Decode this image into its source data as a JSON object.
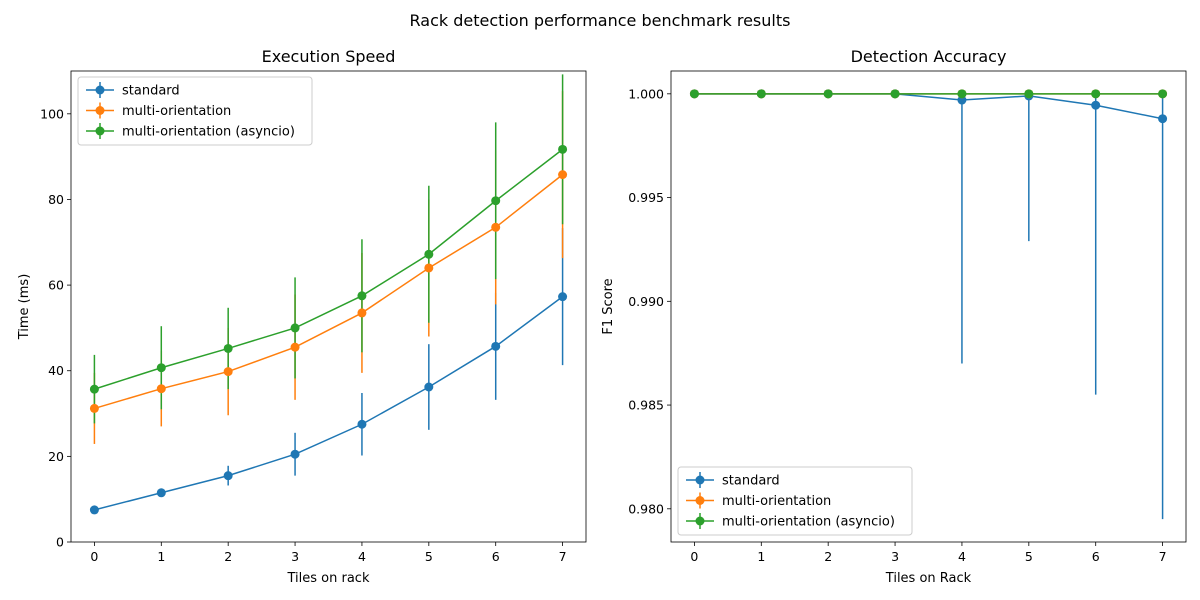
{
  "suptitle": "Rack detection performance benchmark results",
  "colors": {
    "standard": "#1f77b4",
    "multi-orientation": "#ff7f0e",
    "multi-orientation (asyncio)": "#2ca02c"
  },
  "chart_data": [
    {
      "type": "line",
      "title": "Execution Speed",
      "xlabel": "Tiles on rack",
      "ylabel": "Time (ms)",
      "xlim": [
        -0.35,
        7.35
      ],
      "ylim": [
        0,
        110
      ],
      "xticks": [
        0,
        1,
        2,
        3,
        4,
        5,
        6,
        7
      ],
      "yticks": [
        0,
        20,
        40,
        60,
        80,
        100
      ],
      "ytick_labels": [
        "0",
        "20",
        "40",
        "60",
        "80",
        "100"
      ],
      "legend": "upper left",
      "x": [
        0,
        1,
        2,
        3,
        4,
        5,
        6,
        7
      ],
      "series": [
        {
          "name": "standard",
          "color": "#1f77b4",
          "values": [
            7.5,
            11.5,
            15.5,
            20.5,
            27.5,
            36.2,
            45.7,
            57.3
          ],
          "error": [
            0.6,
            0.8,
            2.3,
            5.0,
            7.3,
            10.0,
            12.5,
            16.0
          ]
        },
        {
          "name": "multi-orientation",
          "color": "#ff7f0e",
          "values": [
            31.2,
            35.8,
            39.8,
            45.5,
            53.5,
            64.0,
            73.5,
            85.8
          ],
          "error": [
            8.3,
            8.8,
            10.2,
            12.3,
            14.0,
            16.0,
            18.0,
            19.5
          ]
        },
        {
          "name": "multi-orientation (asyncio)",
          "color": "#2ca02c",
          "values": [
            35.7,
            40.7,
            45.2,
            50.0,
            57.5,
            67.2,
            79.7,
            91.7
          ],
          "error": [
            8.0,
            9.7,
            9.5,
            11.8,
            13.2,
            16.0,
            18.3,
            17.5
          ]
        }
      ]
    },
    {
      "type": "line",
      "title": "Detection Accuracy",
      "xlabel": "Tiles on Rack",
      "ylabel": "F1 Score",
      "xlim": [
        -0.35,
        7.35
      ],
      "ylim": [
        0.9784,
        1.0011
      ],
      "xticks": [
        0,
        1,
        2,
        3,
        4,
        5,
        6,
        7
      ],
      "yticks": [
        0.98,
        0.985,
        0.99,
        0.995,
        1.0
      ],
      "ytick_labels": [
        "0.980",
        "0.985",
        "0.990",
        "0.995",
        "1.000"
      ],
      "legend": "lower left",
      "x": [
        0,
        1,
        2,
        3,
        4,
        5,
        6,
        7
      ],
      "series": [
        {
          "name": "standard",
          "color": "#1f77b4",
          "values": [
            1.0,
            1.0,
            1.0,
            1.0,
            0.9997,
            0.9999,
            0.99945,
            0.9988
          ],
          "lower": [
            1.0,
            1.0,
            1.0,
            1.0,
            0.987,
            0.9929,
            0.9855,
            0.9795
          ],
          "upper": [
            1.0,
            1.0,
            1.0,
            1.0,
            1.0001,
            1.0002,
            1.0,
            1.0
          ]
        },
        {
          "name": "multi-orientation",
          "color": "#ff7f0e",
          "values": [
            1.0,
            1.0,
            1.0,
            1.0,
            1.0,
            1.0,
            1.0,
            1.0
          ]
        },
        {
          "name": "multi-orientation (asyncio)",
          "color": "#2ca02c",
          "values": [
            1.0,
            1.0,
            1.0,
            1.0,
            1.0,
            1.0,
            1.0,
            1.0
          ]
        }
      ]
    }
  ]
}
